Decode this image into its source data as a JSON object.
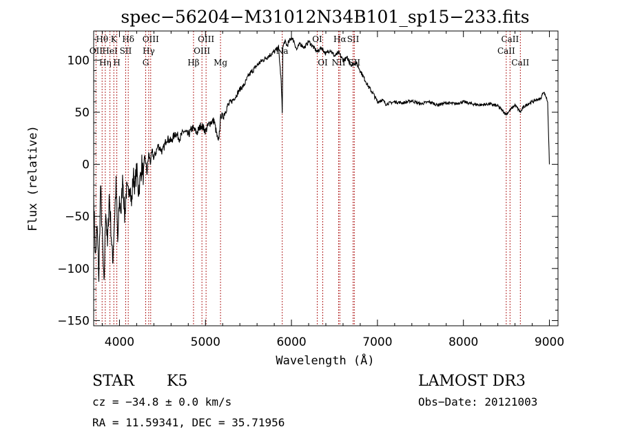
{
  "chart_data": {
    "type": "line",
    "title": "spec−56204−M31012N34B101_sp15−233.fits",
    "xlabel": "Wavelength (Å)",
    "ylabel": "Flux (relative)",
    "xlim": [
      3700,
      9100
    ],
    "ylim": [
      -155,
      128
    ],
    "x_ticks": [
      4000,
      5000,
      6000,
      7000,
      8000,
      9000
    ],
    "x_tick_labels": [
      "4000",
      "5000",
      "6000",
      "7000",
      "8000",
      "9000"
    ],
    "y_ticks": [
      -150,
      -100,
      -50,
      0,
      50,
      100
    ],
    "y_tick_labels": [
      "−150",
      "−100",
      "−50",
      "0",
      "50",
      "100"
    ],
    "series": [
      {
        "name": "flux",
        "x": [
          3700,
          3720,
          3740,
          3760,
          3780,
          3800,
          3820,
          3840,
          3860,
          3880,
          3900,
          3920,
          3940,
          3960,
          3980,
          4000,
          4020,
          4040,
          4060,
          4080,
          4100,
          4120,
          4140,
          4160,
          4180,
          4200,
          4220,
          4240,
          4260,
          4280,
          4300,
          4320,
          4340,
          4360,
          4380,
          4400,
          4450,
          4500,
          4550,
          4600,
          4650,
          4700,
          4750,
          4800,
          4850,
          4900,
          4950,
          5000,
          5050,
          5100,
          5150,
          5180,
          5200,
          5250,
          5300,
          5350,
          5400,
          5450,
          5500,
          5550,
          5600,
          5650,
          5700,
          5750,
          5800,
          5850,
          5880,
          5893,
          5900,
          5920,
          5950,
          6000,
          6030,
          6060,
          6100,
          6150,
          6200,
          6250,
          6300,
          6350,
          6400,
          6450,
          6500,
          6550,
          6600,
          6650,
          6700,
          6750,
          6800,
          6850,
          6900,
          6950,
          7000,
          7050,
          7100,
          7200,
          7300,
          7400,
          7500,
          7600,
          7700,
          7800,
          7900,
          8000,
          8100,
          8200,
          8300,
          8400,
          8498,
          8542,
          8600,
          8662,
          8700,
          8750,
          8800,
          8850,
          8900,
          8930,
          8960,
          8980,
          9000
        ],
        "values": [
          -30,
          -90,
          -60,
          -110,
          -20,
          -70,
          -120,
          -40,
          -80,
          -30,
          -60,
          -95,
          -55,
          -20,
          -75,
          -35,
          -45,
          -10,
          -50,
          -25,
          -30,
          -15,
          -40,
          -10,
          -20,
          -5,
          -25,
          -15,
          0,
          -12,
          5,
          -8,
          10,
          2,
          12,
          6,
          18,
          12,
          25,
          22,
          30,
          25,
          32,
          28,
          35,
          30,
          38,
          32,
          40,
          42,
          20,
          48,
          45,
          55,
          60,
          65,
          72,
          76,
          85,
          90,
          95,
          99,
          102,
          105,
          108,
          112,
          80,
          50,
          112,
          118,
          114,
          122,
          118,
          110,
          116,
          112,
          118,
          113,
          108,
          112,
          106,
          110,
          104,
          107,
          100,
          102,
          95,
          98,
          90,
          82,
          74,
          68,
          60,
          62,
          58,
          60,
          59,
          61,
          58,
          60,
          57,
          59,
          58,
          60,
          58,
          57,
          58,
          56,
          48,
          52,
          57,
          50,
          55,
          58,
          60,
          62,
          63,
          70,
          65,
          60,
          0
        ]
      }
    ],
    "line_markers": [
      {
        "name": "Hθ",
        "wave": 3798,
        "row": 1
      },
      {
        "name": "OII",
        "wave": 3727,
        "row": 2
      },
      {
        "name": "Hη",
        "wave": 3835,
        "row": 3
      },
      {
        "name": "K",
        "wave": 3934,
        "row": 1
      },
      {
        "name": "HeI",
        "wave": 3889,
        "row": 2
      },
      {
        "name": "H",
        "wave": 3969,
        "row": 3
      },
      {
        "name": "SII",
        "wave": 4072,
        "row": 2
      },
      {
        "name": "Hδ",
        "wave": 4102,
        "row": 1
      },
      {
        "name": "OIII",
        "wave": 4363,
        "row": 1
      },
      {
        "name": "Hγ",
        "wave": 4340,
        "row": 2
      },
      {
        "name": "G",
        "wave": 4305,
        "row": 3
      },
      {
        "name": "OIII",
        "wave": 5007,
        "row": 1
      },
      {
        "name": "OIII",
        "wave": 4959,
        "row": 2
      },
      {
        "name": "Hβ",
        "wave": 4861,
        "row": 3
      },
      {
        "name": "Mg",
        "wave": 5175,
        "row": 3
      },
      {
        "name": "Na",
        "wave": 5893,
        "row": 2
      },
      {
        "name": "OI",
        "wave": 6300,
        "row": 1
      },
      {
        "name": "OI",
        "wave": 6364,
        "row": 3
      },
      {
        "name": "Hα",
        "wave": 6563,
        "row": 1
      },
      {
        "name": "NII",
        "wave": 6548,
        "row": 3
      },
      {
        "name": "SII",
        "wave": 6717,
        "row": 1
      },
      {
        "name": "SII",
        "wave": 6731,
        "row": 3
      },
      {
        "name": "CaII",
        "wave": 8542,
        "row": 1
      },
      {
        "name": "CaII",
        "wave": 8498,
        "row": 2
      },
      {
        "name": "CaII",
        "wave": 8662,
        "row": 3
      }
    ]
  },
  "info": {
    "class_label": "STAR",
    "subclass_label": "K5",
    "cz_text": "cz = −34.8 ± 0.0 km/s",
    "radec_text": "RA =  11.59341, DEC =  35.71956",
    "survey_label": "LAMOST DR3",
    "obs_date_text": "Obs−Date: 20121003"
  }
}
